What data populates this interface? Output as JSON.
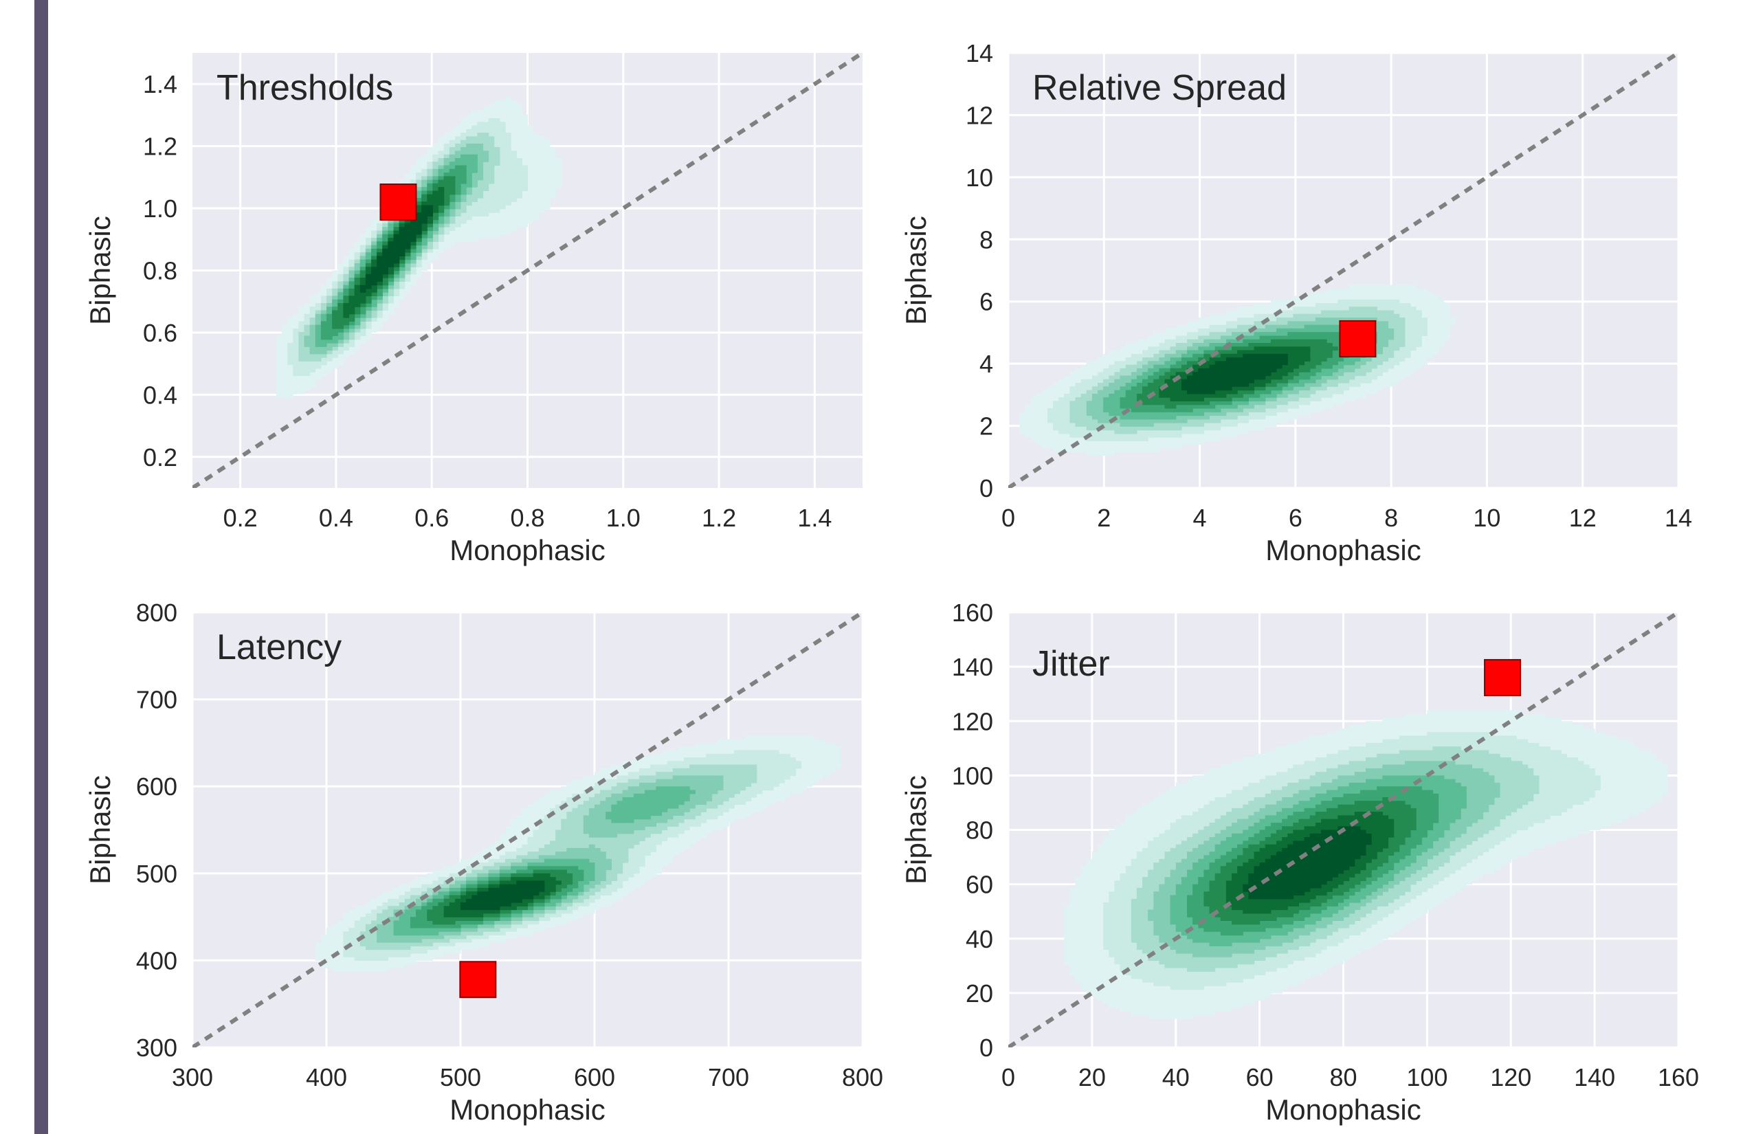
{
  "chart_data": [
    {
      "type": "kde-contour",
      "title": "Thresholds",
      "xlabel": "Monophasic",
      "ylabel": "Biphasic",
      "xlim": [
        0.1,
        1.5
      ],
      "ylim": [
        0.1,
        1.5
      ],
      "xticks": [
        "0.2",
        "0.4",
        "0.6",
        "0.8",
        "1.0",
        "1.2",
        "1.4"
      ],
      "yticks": [
        "0.2",
        "0.4",
        "0.6",
        "0.8",
        "1.0",
        "1.2",
        "1.4"
      ],
      "xtick_values": [
        0.2,
        0.4,
        0.6,
        0.8,
        1.0,
        1.2,
        1.4
      ],
      "ytick_values": [
        0.2,
        0.4,
        0.6,
        0.8,
        1.0,
        1.2,
        1.4
      ],
      "identity_line": true,
      "density_components": [
        {
          "cx": 0.52,
          "cy": 0.86,
          "sx": 0.11,
          "sy": 0.21,
          "rho": 0.93,
          "w": 1.0
        },
        {
          "cx": 0.72,
          "cy": 1.08,
          "sx": 0.1,
          "sy": 0.12,
          "rho": 0.2,
          "w": 0.25
        },
        {
          "cx": 0.38,
          "cy": 0.62,
          "sx": 0.07,
          "sy": 0.07,
          "rho": 0.5,
          "w": 0.2
        }
      ],
      "marker": {
        "x": 0.53,
        "y": 1.02
      }
    },
    {
      "type": "kde-contour",
      "title": "Relative Spread",
      "xlabel": "Monophasic",
      "ylabel": "Biphasic",
      "xlim": [
        0,
        14
      ],
      "ylim": [
        0,
        14
      ],
      "xticks": [
        "0",
        "2",
        "4",
        "6",
        "8",
        "10",
        "12",
        "14"
      ],
      "yticks": [
        "0",
        "2",
        "4",
        "6",
        "8",
        "10",
        "12",
        "14"
      ],
      "xtick_values": [
        0,
        2,
        4,
        6,
        8,
        10,
        12,
        14
      ],
      "ytick_values": [
        0,
        2,
        4,
        6,
        8,
        10,
        12,
        14
      ],
      "identity_line": true,
      "density_components": [
        {
          "cx": 4.7,
          "cy": 3.7,
          "sx": 1.9,
          "sy": 1.15,
          "rho": 0.62,
          "w": 1.0
        },
        {
          "cx": 7.5,
          "cy": 4.8,
          "sx": 0.9,
          "sy": 1.0,
          "rho": 0.3,
          "w": 0.18
        },
        {
          "cx": 2.0,
          "cy": 2.6,
          "sx": 0.9,
          "sy": 0.6,
          "rho": 0.4,
          "w": 0.12
        }
      ],
      "marker": {
        "x": 7.3,
        "y": 4.8
      }
    },
    {
      "type": "kde-contour",
      "title": "Latency",
      "xlabel": "Monophasic",
      "ylabel": "Biphasic",
      "xlim": [
        300,
        800
      ],
      "ylim": [
        300,
        800
      ],
      "xticks": [
        "300",
        "400",
        "500",
        "600",
        "700",
        "800"
      ],
      "yticks": [
        "300",
        "400",
        "500",
        "600",
        "700",
        "800"
      ],
      "xtick_values": [
        300,
        400,
        500,
        600,
        700,
        800
      ],
      "ytick_values": [
        300,
        400,
        500,
        600,
        700,
        800
      ],
      "identity_line": true,
      "density_components": [
        {
          "cx": 535,
          "cy": 475,
          "sx": 52,
          "sy": 30,
          "rho": 0.65,
          "w": 1.0
        },
        {
          "cx": 640,
          "cy": 580,
          "sx": 55,
          "sy": 35,
          "rho": 0.6,
          "w": 0.55
        },
        {
          "cx": 450,
          "cy": 430,
          "sx": 35,
          "sy": 28,
          "rho": 0.55,
          "w": 0.25
        },
        {
          "cx": 740,
          "cy": 625,
          "sx": 40,
          "sy": 25,
          "rho": 0.3,
          "w": 0.12
        }
      ],
      "marker": {
        "x": 513,
        "y": 378
      }
    },
    {
      "type": "kde-contour",
      "title": "Jitter",
      "xlabel": "Monophasic",
      "ylabel": "Biphasic",
      "xlim": [
        0,
        160
      ],
      "ylim": [
        0,
        160
      ],
      "xticks": [
        "0",
        "20",
        "40",
        "60",
        "80",
        "100",
        "120",
        "140",
        "160"
      ],
      "yticks": [
        "0",
        "20",
        "40",
        "60",
        "80",
        "100",
        "120",
        "140",
        "160"
      ],
      "xtick_values": [
        0,
        20,
        40,
        60,
        80,
        100,
        120,
        140,
        160
      ],
      "ytick_values": [
        0,
        20,
        40,
        60,
        80,
        100,
        120,
        140,
        160
      ],
      "identity_line": true,
      "density_components": [
        {
          "cx": 72,
          "cy": 66,
          "sx": 22,
          "sy": 20,
          "rho": 0.55,
          "w": 1.0
        },
        {
          "cx": 100,
          "cy": 95,
          "sx": 25,
          "sy": 17,
          "rho": 0.3,
          "w": 0.35
        },
        {
          "cx": 45,
          "cy": 55,
          "sx": 20,
          "sy": 28,
          "rho": 0.2,
          "w": 0.25
        },
        {
          "cx": 140,
          "cy": 95,
          "sx": 18,
          "sy": 12,
          "rho": 0.2,
          "w": 0.12
        }
      ],
      "marker": {
        "x": 118,
        "y": 136
      }
    }
  ],
  "colors": {
    "axes_bg": "#eaeaf2",
    "grid": "#ffffff",
    "identity_line": "#808080",
    "marker_fill": "#ff0000",
    "marker_edge": "#8b0000",
    "levels": [
      "#e0f3f3",
      "#c9ebe3",
      "#a8ddcd",
      "#82cdb3",
      "#5bbd95",
      "#3ba574",
      "#238b4f",
      "#0d6e35",
      "#00542a"
    ],
    "left_bar": "#5b5270"
  }
}
